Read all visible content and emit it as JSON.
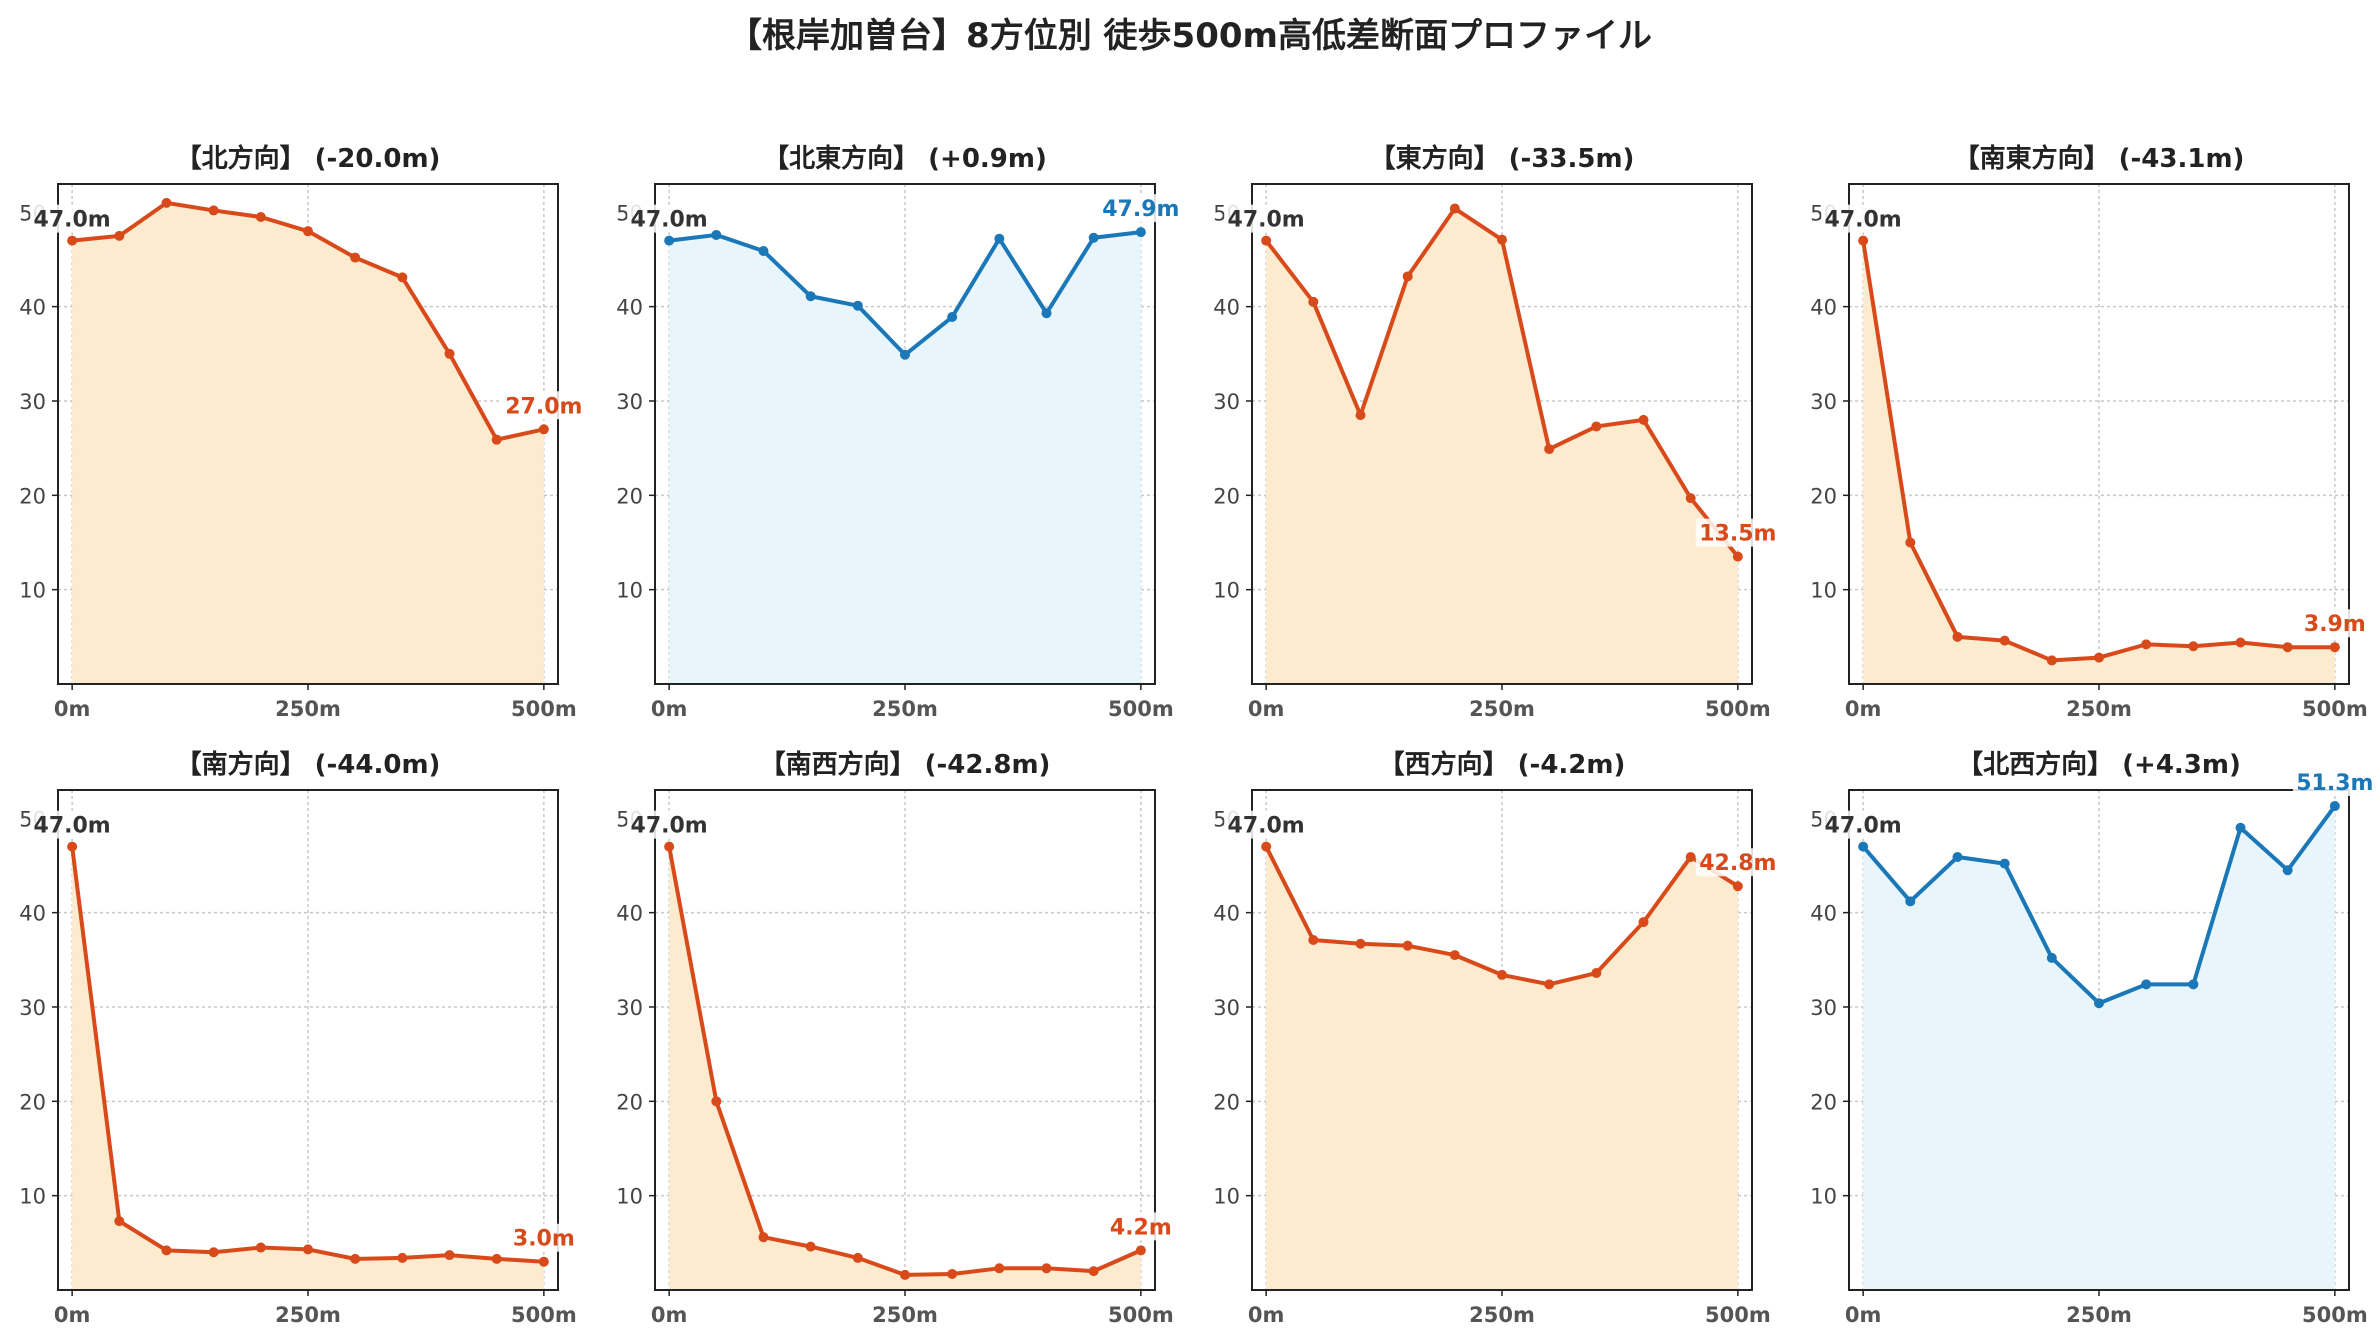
{
  "suptitle": "【根岸加曽台】8方位別 徒歩500m高低差断面プロファイル",
  "colors": {
    "down_line": "#d94a1a",
    "down_fill": "#fdebd0",
    "up_line": "#1a78b8",
    "up_fill": "#e8f6fb",
    "start_label": "#333333",
    "axis": "#222222",
    "grid": "#c8c8c8"
  },
  "chart_data": [
    {
      "type": "area",
      "title": "【北方向】 (-20.0m)",
      "x": [
        0,
        50,
        100,
        150,
        200,
        250,
        300,
        350,
        400,
        450,
        500
      ],
      "series": [
        {
          "values": [
            47.0,
            47.5,
            51.0,
            50.2,
            49.5,
            48.0,
            45.2,
            43.1,
            35.0,
            25.9,
            27.0
          ]
        }
      ],
      "start_label": "47.0m",
      "end_label": "27.0m",
      "trend": "down",
      "ylim": [
        0,
        53
      ],
      "yticks": [
        10,
        20,
        30,
        40
      ],
      "xticks": [
        "0m",
        "250m",
        "500m"
      ],
      "xlim": [
        -15,
        515
      ],
      "grid": true
    },
    {
      "type": "area",
      "title": "【北東方向】 (+0.9m)",
      "x": [
        0,
        50,
        100,
        150,
        200,
        250,
        300,
        350,
        400,
        450,
        500
      ],
      "series": [
        {
          "values": [
            47.0,
            47.6,
            45.9,
            41.1,
            40.1,
            34.9,
            38.9,
            47.2,
            39.3,
            47.3,
            47.9
          ]
        }
      ],
      "start_label": "47.0m",
      "end_label": "47.9m",
      "trend": "up",
      "ylim": [
        0,
        53
      ],
      "yticks": [
        10,
        20,
        30,
        40
      ],
      "xticks": [
        "0m",
        "250m",
        "500m"
      ],
      "xlim": [
        -15,
        515
      ],
      "grid": true
    },
    {
      "type": "area",
      "title": "【東方向】 (-33.5m)",
      "x": [
        0,
        50,
        100,
        150,
        200,
        250,
        300,
        350,
        400,
        450,
        500
      ],
      "series": [
        {
          "values": [
            47.0,
            40.5,
            28.5,
            43.2,
            50.4,
            47.1,
            24.9,
            27.3,
            28.0,
            19.7,
            13.5
          ]
        }
      ],
      "start_label": "47.0m",
      "end_label": "13.5m",
      "trend": "down",
      "ylim": [
        0,
        53
      ],
      "yticks": [
        10,
        20,
        30,
        40
      ],
      "xticks": [
        "0m",
        "250m",
        "500m"
      ],
      "xlim": [
        -15,
        515
      ],
      "grid": true
    },
    {
      "type": "area",
      "title": "【南東方向】 (-43.1m)",
      "x": [
        0,
        50,
        100,
        150,
        200,
        250,
        300,
        350,
        400,
        450,
        500
      ],
      "series": [
        {
          "values": [
            47.0,
            15.0,
            5.0,
            4.6,
            2.5,
            2.8,
            4.2,
            4.0,
            4.4,
            3.9,
            3.9
          ]
        }
      ],
      "start_label": "47.0m",
      "end_label": "3.9m",
      "trend": "down",
      "ylim": [
        0,
        53
      ],
      "yticks": [
        10,
        20,
        30,
        40
      ],
      "xticks": [
        "0m",
        "250m",
        "500m"
      ],
      "xlim": [
        -15,
        515
      ],
      "grid": true
    },
    {
      "type": "area",
      "title": "【南方向】 (-44.0m)",
      "x": [
        0,
        50,
        100,
        150,
        200,
        250,
        300,
        350,
        400,
        450,
        500
      ],
      "series": [
        {
          "values": [
            47.0,
            7.3,
            4.2,
            4.0,
            4.5,
            4.3,
            3.3,
            3.4,
            3.7,
            3.3,
            3.0
          ]
        }
      ],
      "start_label": "47.0m",
      "end_label": "3.0m",
      "trend": "down",
      "ylim": [
        0,
        53
      ],
      "yticks": [
        10,
        20,
        30,
        40
      ],
      "xticks": [
        "0m",
        "250m",
        "500m"
      ],
      "xlim": [
        -15,
        515
      ],
      "grid": true
    },
    {
      "type": "area",
      "title": "【南西方向】 (-42.8m)",
      "x": [
        0,
        50,
        100,
        150,
        200,
        250,
        300,
        350,
        400,
        450,
        500
      ],
      "series": [
        {
          "values": [
            47.0,
            20.0,
            5.6,
            4.6,
            3.4,
            1.6,
            1.7,
            2.3,
            2.3,
            2.0,
            4.2
          ]
        }
      ],
      "start_label": "47.0m",
      "end_label": "4.2m",
      "trend": "down",
      "ylim": [
        0,
        53
      ],
      "yticks": [
        10,
        20,
        30,
        40
      ],
      "xticks": [
        "0m",
        "250m",
        "500m"
      ],
      "xlim": [
        -15,
        515
      ],
      "grid": true
    },
    {
      "type": "area",
      "title": "【西方向】 (-4.2m)",
      "x": [
        0,
        50,
        100,
        150,
        200,
        250,
        300,
        350,
        400,
        450,
        500
      ],
      "series": [
        {
          "values": [
            47.0,
            37.1,
            36.7,
            36.5,
            35.5,
            33.4,
            32.4,
            33.6,
            39.0,
            45.9,
            42.8
          ]
        }
      ],
      "start_label": "47.0m",
      "end_label": "42.8m",
      "trend": "down",
      "ylim": [
        0,
        53
      ],
      "yticks": [
        10,
        20,
        30,
        40
      ],
      "xticks": [
        "0m",
        "250m",
        "500m"
      ],
      "xlim": [
        -15,
        515
      ],
      "grid": true
    },
    {
      "type": "area",
      "title": "【北西方向】 (+4.3m)",
      "x": [
        0,
        50,
        100,
        150,
        200,
        250,
        300,
        350,
        400,
        450,
        500
      ],
      "series": [
        {
          "values": [
            47.0,
            41.2,
            45.9,
            45.2,
            35.2,
            30.4,
            32.4,
            32.4,
            49.0,
            44.5,
            51.3
          ]
        }
      ],
      "start_label": "47.0m",
      "end_label": "51.3m",
      "trend": "up",
      "ylim": [
        0,
        53
      ],
      "yticks": [
        10,
        20,
        30,
        40
      ],
      "xticks": [
        "0m",
        "250m",
        "500m"
      ],
      "xlim": [
        -15,
        515
      ],
      "grid": true
    }
  ]
}
